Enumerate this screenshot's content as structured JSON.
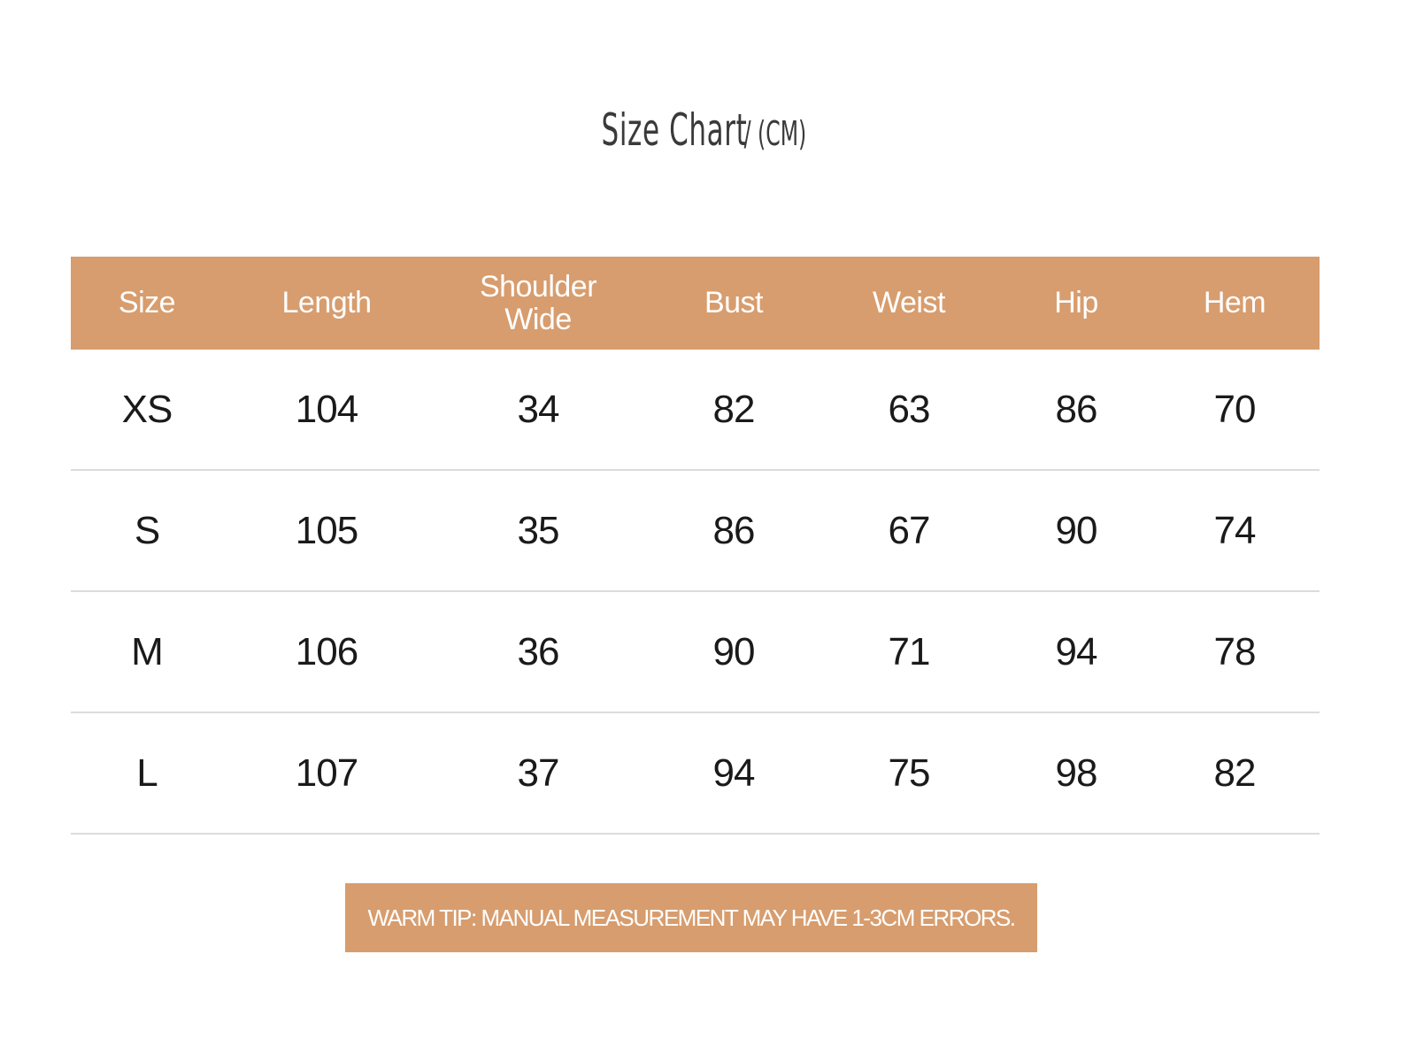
{
  "title": {
    "main": "Size Chart",
    "unit": "/ (CM)"
  },
  "colors": {
    "accent": "#D79D6E",
    "text": "#1a1a1a",
    "divider": "#dcdcdc"
  },
  "table": {
    "headers": [
      "Size",
      "Length",
      "Shoulder Wide",
      "Bust",
      "Weist",
      "Hip",
      "Hem"
    ],
    "rows": [
      [
        "XS",
        "104",
        "34",
        "82",
        "63",
        "86",
        "70"
      ],
      [
        "S",
        "105",
        "35",
        "86",
        "67",
        "90",
        "74"
      ],
      [
        "M",
        "106",
        "36",
        "90",
        "71",
        "94",
        "78"
      ],
      [
        "L",
        "107",
        "37",
        "94",
        "75",
        "98",
        "82"
      ]
    ]
  },
  "tip": "WARM TIP: MANUAL MEASUREMENT MAY HAVE 1-3CM ERRORS."
}
